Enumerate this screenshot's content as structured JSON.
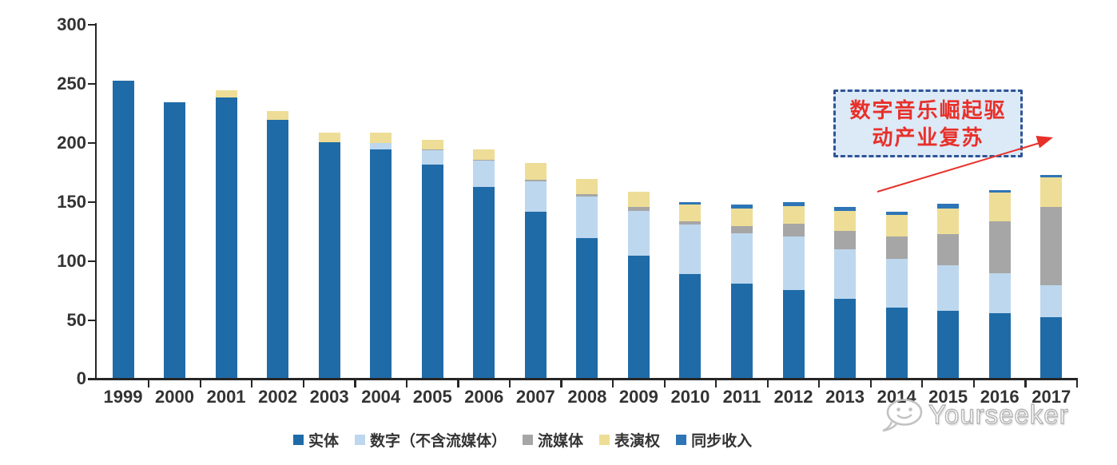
{
  "chart_data": {
    "type": "bar",
    "stacked": true,
    "title": "",
    "xlabel": "",
    "ylabel": "",
    "ylim": [
      0,
      300
    ],
    "yticks": [
      0,
      50,
      100,
      150,
      200,
      250,
      300
    ],
    "grid": false,
    "legend_position": "bottom",
    "categories": [
      "1999",
      "2000",
      "2001",
      "2002",
      "2003",
      "2004",
      "2005",
      "2006",
      "2007",
      "2008",
      "2009",
      "2010",
      "2011",
      "2012",
      "2013",
      "2014",
      "2015",
      "2016",
      "2017"
    ],
    "series": [
      {
        "name": "实体",
        "color": "#1F6BA8",
        "values": [
          252,
          234,
          238,
          219,
          200,
          194,
          181,
          162,
          141,
          119,
          104,
          88,
          80,
          75,
          67,
          60,
          57,
          55,
          52
        ]
      },
      {
        "name": "数字（不含流媒体）",
        "color": "#BDD7EE",
        "values": [
          0,
          0,
          0,
          0,
          0,
          5,
          12,
          22,
          26,
          35,
          38,
          42,
          43,
          45,
          42,
          41,
          39,
          34,
          27
        ]
      },
      {
        "name": "流媒体",
        "color": "#A6A6A6",
        "values": [
          0,
          0,
          0,
          0,
          0,
          0,
          1,
          1,
          1,
          2,
          3,
          3,
          6,
          11,
          16,
          19,
          26,
          44,
          66
        ]
      },
      {
        "name": "表演权",
        "color": "#EEDD96",
        "values": [
          0,
          0,
          6,
          7,
          8,
          9,
          8,
          9,
          14,
          13,
          13,
          14,
          15,
          15,
          17,
          18,
          22,
          24,
          25
        ]
      },
      {
        "name": "同步收入",
        "color": "#2E75B6",
        "values": [
          0,
          0,
          0,
          0,
          0,
          0,
          0,
          0,
          0,
          0,
          0,
          2,
          3,
          3,
          3,
          3,
          4,
          2,
          2
        ]
      }
    ]
  },
  "annotation": {
    "line1": "数字音乐崛起驱",
    "line2": "动产业复苏",
    "border_color": "#2F5597",
    "fill_color": "#DCE9F7",
    "text_color": "#E8302A",
    "arrow_color": "#E8302A"
  },
  "watermark": {
    "text": "Yourseeker"
  }
}
